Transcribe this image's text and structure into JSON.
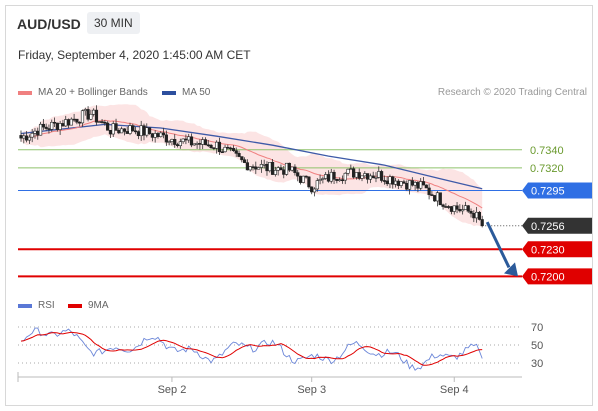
{
  "header": {
    "symbol": "AUD/USD",
    "timeframe": "30 MIN",
    "datetime": "Friday, September 4, 2020 1:45:00 AM CET",
    "credit": "Research © 2020 Trading Central"
  },
  "legend_main": [
    {
      "label": "MA 20 + Bollinger Bands",
      "color": "#f08080"
    },
    {
      "label": "MA 50",
      "color": "#2d4f9e"
    }
  ],
  "legend_rsi": [
    {
      "label": "RSI",
      "color": "#5a78d6"
    },
    {
      "label": "9MA",
      "color": "#e00000"
    }
  ],
  "chart_data": [
    {
      "type": "candlestick",
      "y_range": [
        0.7185,
        0.7395
      ],
      "x_ticks": [
        "Sep 2",
        "Sep 3",
        "Sep 4"
      ],
      "price_close_start": 0.7353,
      "price_close_end": 0.7256,
      "ma50": [
        {
          "t": 0,
          "v": 0.7358
        },
        {
          "t": 30,
          "v": 0.7368
        },
        {
          "t": 50,
          "v": 0.7364
        },
        {
          "t": 70,
          "v": 0.7355
        },
        {
          "t": 90,
          "v": 0.7345
        },
        {
          "t": 110,
          "v": 0.7333
        },
        {
          "t": 130,
          "v": 0.7323
        },
        {
          "t": 150,
          "v": 0.7308
        },
        {
          "t": 165,
          "v": 0.7297
        }
      ],
      "levels": [
        {
          "value": 0.734,
          "label": "0.7340",
          "kind": "resistance",
          "color": "#8fc26b"
        },
        {
          "value": 0.732,
          "label": "0.7320",
          "kind": "resistance",
          "color": "#8fc26b"
        },
        {
          "value": 0.7295,
          "label": "0.7295",
          "kind": "pivot",
          "color": "#2f6fe4"
        },
        {
          "value": 0.7256,
          "label": "0.7256",
          "kind": "last",
          "color": "#333333"
        },
        {
          "value": 0.723,
          "label": "0.7230",
          "kind": "support",
          "color": "#e00000"
        },
        {
          "value": 0.72,
          "label": "0.7200",
          "kind": "support",
          "color": "#e00000"
        }
      ],
      "forecast_arrow": {
        "from": 0.726,
        "to": 0.72,
        "color": "#2b5a9a"
      }
    },
    {
      "type": "line",
      "name": "RSI",
      "y_ticks": [
        70,
        50,
        30
      ],
      "y_range": [
        20,
        80
      ],
      "rsi_start": 52,
      "rsi_end": 35
    }
  ]
}
